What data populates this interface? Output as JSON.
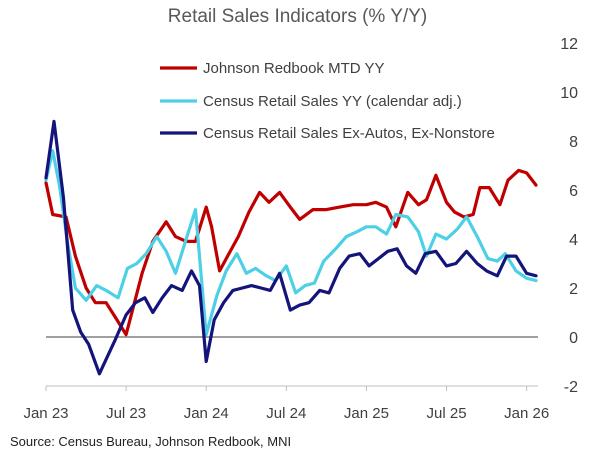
{
  "chart_data": {
    "type": "line",
    "title": "Retail Sales Indicators (% Y/Y)",
    "source": "Source: Census Bureau, Johnson Redbook, MNI",
    "ylim": [
      -2,
      12
    ],
    "yticks": [
      -2,
      0,
      2,
      4,
      6,
      8,
      10,
      12
    ],
    "y_axis_side": "right",
    "zero_line": true,
    "grid": false,
    "legend_position": "top-left",
    "x_tick_labels": [
      "Jan 23",
      "Jul 23",
      "Jan 24",
      "Jul 24",
      "Jan 25",
      "Jul 25",
      "Jan 26"
    ],
    "x_tick_indices": [
      0,
      6,
      12,
      18,
      24,
      30,
      36
    ],
    "x_range": [
      0,
      37
    ],
    "series": [
      {
        "name": "Johnson Redbook MTD YY",
        "color": "#c00000",
        "x": [
          0,
          0.5,
          1.5,
          2.2,
          3,
          3.7,
          4.5,
          5.2,
          6,
          7.2,
          8,
          9,
          9.7,
          10.5,
          11.2,
          12,
          12.4,
          13,
          13.6,
          14.4,
          15.2,
          16,
          16.7,
          17.5,
          18.3,
          19,
          20,
          21,
          22,
          23,
          24,
          24.7,
          25.5,
          26.2,
          27.1,
          27.9,
          28.5,
          29.2,
          30,
          30.6,
          31.3,
          32,
          32.5,
          33.2,
          34,
          34.6,
          35.4,
          36,
          36.7
        ],
        "values": [
          6.3,
          5.0,
          4.9,
          3.3,
          2.0,
          1.4,
          1.4,
          0.8,
          0.1,
          2.6,
          3.9,
          4.7,
          4.1,
          3.9,
          3.9,
          5.3,
          4.5,
          2.7,
          3.3,
          4.1,
          5.1,
          5.9,
          5.5,
          5.9,
          5.3,
          4.8,
          5.2,
          5.2,
          5.3,
          5.4,
          5.4,
          5.5,
          5.3,
          4.5,
          5.9,
          5.4,
          5.6,
          6.6,
          5.5,
          5.1,
          4.9,
          5.0,
          6.1,
          6.1,
          5.4,
          6.4,
          6.8,
          6.7,
          6.2
        ]
      },
      {
        "name": "Census Retail Sales YY (calendar adj.)",
        "color": "#4dd0e6",
        "x": [
          0,
          0.5,
          1,
          1.6,
          2.2,
          3,
          3.8,
          4.5,
          5.4,
          6.1,
          6.8,
          7.5,
          8.3,
          9,
          9.7,
          10.5,
          11.2,
          12,
          12.8,
          13.5,
          14.3,
          15,
          15.7,
          16.5,
          17.2,
          18,
          18.7,
          19.4,
          20.1,
          20.8,
          21.7,
          22.5,
          23.3,
          24,
          24.7,
          25.5,
          26.2,
          27.1,
          27.9,
          28.5,
          29.2,
          30,
          30.8,
          31.5,
          32.3,
          33.1,
          33.8,
          34.4,
          35.2,
          36,
          36.7
        ],
        "values": [
          6.4,
          7.6,
          6.2,
          3.9,
          2.0,
          1.5,
          2.1,
          1.9,
          1.6,
          2.8,
          3.0,
          3.4,
          4.1,
          3.5,
          2.6,
          4.0,
          5.2,
          0.1,
          1.7,
          2.7,
          3.4,
          2.6,
          2.8,
          2.5,
          2.3,
          2.9,
          1.8,
          2.1,
          2.2,
          3.1,
          3.6,
          4.1,
          4.3,
          4.5,
          4.5,
          4.2,
          5.0,
          4.9,
          4.3,
          3.3,
          4.2,
          4.0,
          4.4,
          4.9,
          4.1,
          3.2,
          3.1,
          3.4,
          2.7,
          2.4,
          2.3
        ]
      },
      {
        "name": "Census Retail Sales Ex-Autos, Ex-Nonstore",
        "color": "#14147a",
        "x": [
          0,
          0.6,
          1.3,
          2,
          2.6,
          3.2,
          4,
          4.6,
          5.2,
          6,
          6.7,
          7.4,
          8,
          8.7,
          9.4,
          10.2,
          10.9,
          11.5,
          12,
          12.6,
          13.3,
          14,
          14.7,
          15.4,
          16.1,
          16.8,
          17.5,
          18.3,
          19,
          19.7,
          20.5,
          21.2,
          22,
          22.7,
          23.5,
          24.2,
          24.9,
          25.6,
          26.3,
          27,
          27.7,
          28.4,
          29.2,
          30,
          30.7,
          31.5,
          32.3,
          33,
          33.8,
          34.5,
          35.2,
          36,
          36.7
        ],
        "values": [
          6.5,
          8.8,
          5.7,
          1.1,
          0.2,
          -0.3,
          -1.5,
          -0.8,
          -0.1,
          0.9,
          1.4,
          1.6,
          1.0,
          1.6,
          2.1,
          1.9,
          2.7,
          2.1,
          -1.0,
          0.7,
          1.4,
          1.9,
          2.0,
          2.1,
          2.0,
          1.9,
          2.6,
          1.1,
          1.3,
          1.4,
          1.9,
          1.8,
          2.8,
          3.3,
          3.4,
          2.9,
          3.2,
          3.5,
          3.6,
          2.9,
          2.6,
          3.4,
          3.5,
          2.9,
          3.0,
          3.5,
          3.0,
          2.7,
          2.5,
          3.3,
          3.3,
          2.6,
          2.5
        ]
      }
    ]
  }
}
